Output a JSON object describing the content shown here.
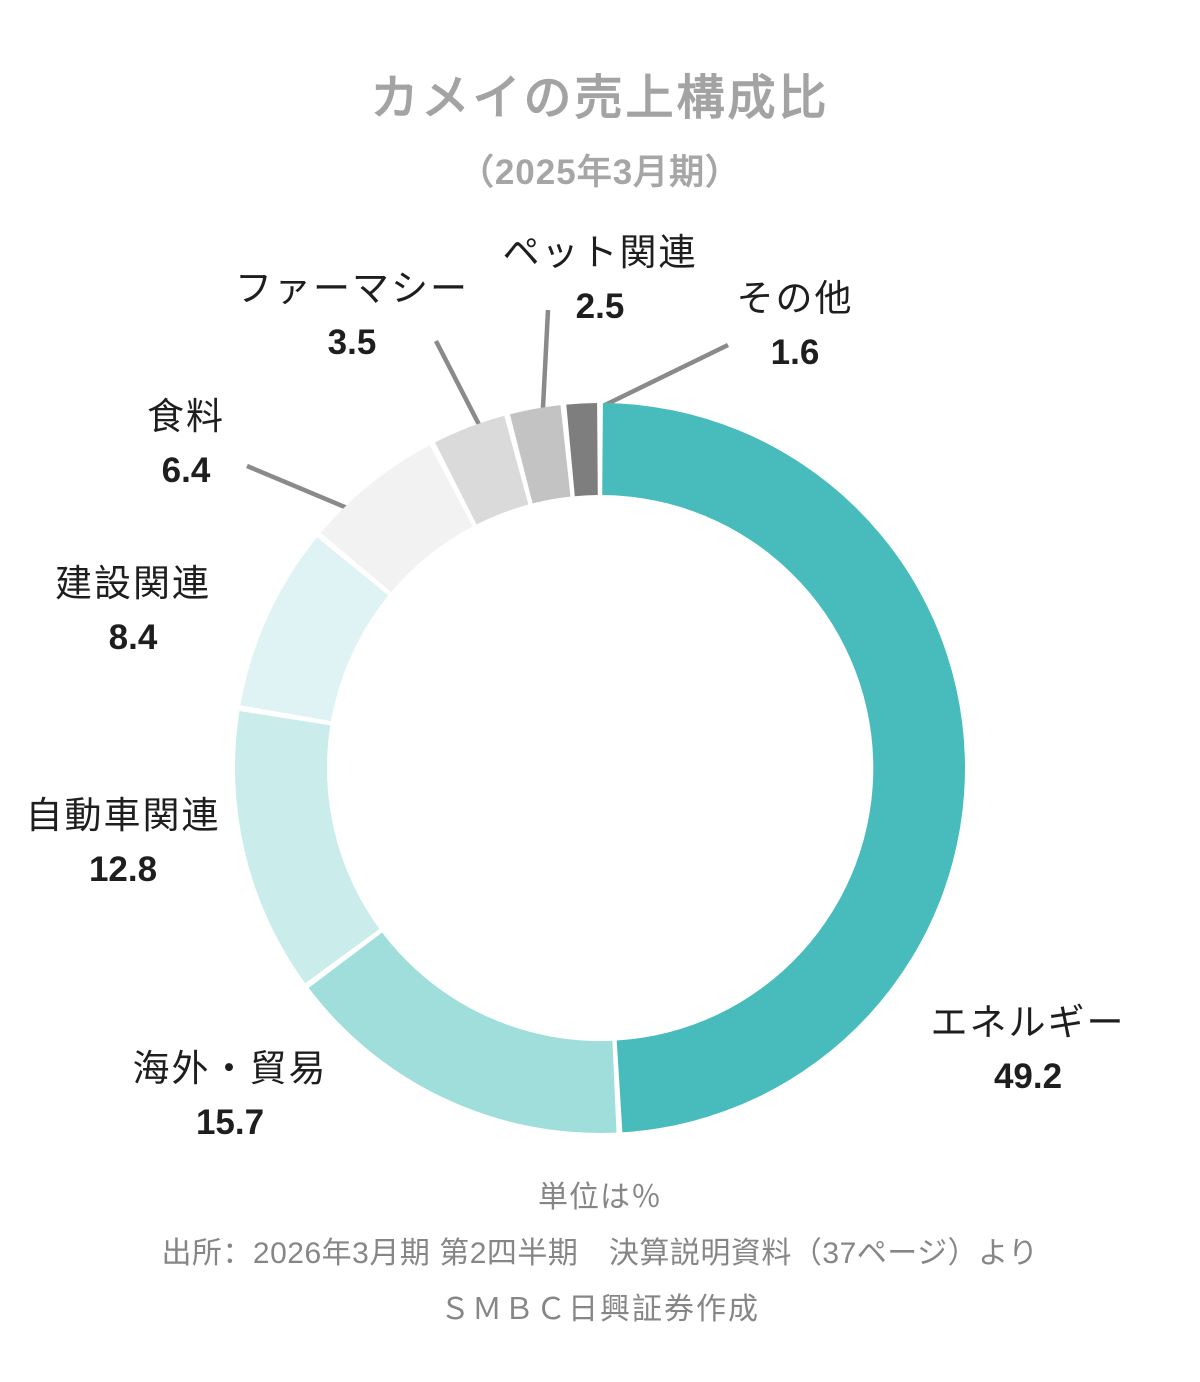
{
  "title": "カメイの売上構成比",
  "subtitle": "（2025年3月期）",
  "footer": {
    "unit_note": "単位は％",
    "source": "出所：2026年3月期 第2四半期　決算説明資料（37ページ）より",
    "credit": "ＳＭＢＣ日興証券作成"
  },
  "chart_data": {
    "type": "pie",
    "title": "カメイの売上構成比（2025年3月期）",
    "unit": "%",
    "donut": true,
    "start_angle_deg": 0,
    "direction": "clockwise",
    "legend_position": "none",
    "leader_line_color": "#8a8a8a",
    "segments": [
      {
        "label": "エネルギー",
        "value": 49.2,
        "color": "#48bcbc"
      },
      {
        "label": "海外・貿易",
        "value": 15.7,
        "color": "#9fdeda"
      },
      {
        "label": "自動車関連",
        "value": 12.8,
        "color": "#caedeb"
      },
      {
        "label": "建設関連",
        "value": 8.4,
        "color": "#dff2f4"
      },
      {
        "label": "食料",
        "value": 6.4,
        "color": "#f2f2f2"
      },
      {
        "label": "ファーマシー",
        "value": 3.5,
        "color": "#dadada"
      },
      {
        "label": "ペット関連",
        "value": 2.5,
        "color": "#c3c3c3"
      },
      {
        "label": "その他",
        "value": 1.6,
        "color": "#7e7e7e"
      }
    ]
  }
}
